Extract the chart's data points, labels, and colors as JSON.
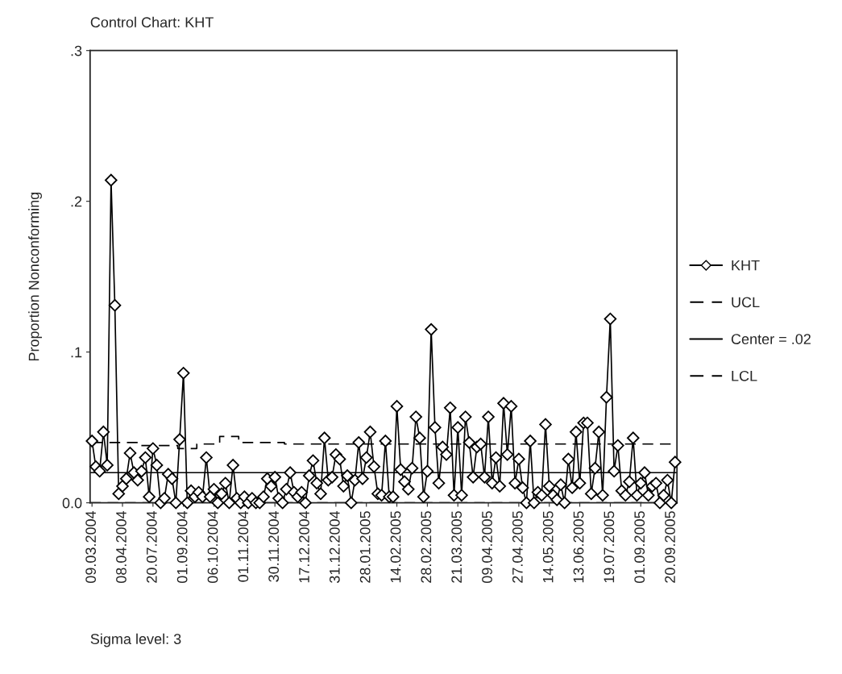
{
  "chart_data": {
    "type": "line",
    "title": "Control Chart: KHT",
    "ylabel": "Proportion Nonconforming",
    "annotations": [
      "Sigma level: 3"
    ],
    "categories": [
      "09.03.2004",
      null,
      null,
      null,
      null,
      null,
      null,
      null,
      "08.04.2004",
      null,
      null,
      null,
      null,
      null,
      null,
      null,
      "20.07.2004",
      null,
      null,
      null,
      null,
      null,
      null,
      null,
      "01.09.2004",
      null,
      null,
      null,
      null,
      null,
      null,
      null,
      "06.10.2004",
      null,
      null,
      null,
      null,
      null,
      null,
      null,
      "01.11.2004",
      null,
      null,
      null,
      null,
      null,
      null,
      null,
      "30.11.2004",
      null,
      null,
      null,
      null,
      null,
      null,
      null,
      "17.12.2004",
      null,
      null,
      null,
      null,
      null,
      null,
      null,
      "31.12.2004",
      null,
      null,
      null,
      null,
      null,
      null,
      null,
      "28.01.2005",
      null,
      null,
      null,
      null,
      null,
      null,
      null,
      "14.02.2005",
      null,
      null,
      null,
      null,
      null,
      null,
      null,
      "28.02.2005",
      null,
      null,
      null,
      null,
      null,
      null,
      null,
      "21.03.2005",
      null,
      null,
      null,
      null,
      null,
      null,
      null,
      "09.04.2005",
      null,
      null,
      null,
      null,
      null,
      null,
      null,
      "27.04.2005",
      null,
      null,
      null,
      null,
      null,
      null,
      null,
      "14.05.2005",
      null,
      null,
      null,
      null,
      null,
      null,
      null,
      "13.06.2005",
      null,
      null,
      null,
      null,
      null,
      null,
      null,
      "19.07.2005",
      null,
      null,
      null,
      null,
      null,
      null,
      null,
      "01.09.2005",
      null,
      null,
      null,
      null,
      null,
      null,
      null,
      "20.09.2005",
      null
    ],
    "series": [
      {
        "name": "KHT",
        "color": "#000000",
        "marker": "diamond",
        "line_style": "solid",
        "values": [
          0.041,
          0.024,
          0.021,
          0.047,
          0.025,
          0.214,
          0.131,
          0.006,
          0.011,
          0.016,
          0.033,
          0.02,
          0.015,
          0.021,
          0.03,
          0.004,
          0.036,
          0.025,
          0,
          0.003,
          0.019,
          0.016,
          0,
          0.042,
          0.086,
          0,
          0.008,
          0.004,
          0.007,
          0.004,
          0.03,
          0.004,
          0.009,
          0,
          0.006,
          0.013,
          0,
          0.025,
          0.003,
          0,
          0.004,
          0,
          0.003,
          0,
          0,
          0.004,
          0.016,
          0.011,
          0.017,
          0.003,
          0,
          0.009,
          0.02,
          0.007,
          0.004,
          0.007,
          0,
          0.018,
          0.028,
          0.013,
          0.006,
          0.043,
          0.015,
          0.017,
          0.032,
          0.029,
          0.011,
          0.018,
          0,
          0.015,
          0.04,
          0.016,
          0.03,
          0.047,
          0.024,
          0.006,
          0.005,
          0.041,
          0.004,
          0.004,
          0.064,
          0.022,
          0.014,
          0.009,
          0.023,
          0.057,
          0.043,
          0.004,
          0.021,
          0.115,
          0.05,
          0.013,
          0.037,
          0.032,
          0.063,
          0.005,
          0.05,
          0.005,
          0.057,
          0.04,
          0.017,
          0.037,
          0.039,
          0.017,
          0.057,
          0.013,
          0.03,
          0.011,
          0.066,
          0.032,
          0.064,
          0.013,
          0.029,
          0.01,
          0,
          0.041,
          0,
          0.007,
          0.005,
          0.052,
          0.011,
          0.005,
          0.002,
          0.012,
          0,
          0.029,
          0.01,
          0.047,
          0.013,
          0.053,
          0.053,
          0.006,
          0.023,
          0.047,
          0.005,
          0.07,
          0.122,
          0.021,
          0.038,
          0.008,
          0.005,
          0.014,
          0.043,
          0.005,
          0.013,
          0.02,
          0.005,
          0.011,
          0.013,
          0,
          0.005,
          0.015,
          0,
          0.027
        ]
      },
      {
        "name": "UCL",
        "type": "step",
        "color": "#000000",
        "marker": "none",
        "line_style": "dashed",
        "values": [
          0.04,
          0.04,
          0.04,
          0.04,
          0.04,
          0.04,
          0.04,
          0.04,
          0.04,
          0.04,
          0.04,
          0.04,
          0.04,
          0.038,
          0.038,
          0.038,
          0.038,
          0.038,
          0.038,
          0.038,
          0.038,
          0.038,
          0.038,
          0.036,
          0.036,
          0.036,
          0.036,
          0.036,
          0.039,
          0.039,
          0.039,
          0.039,
          0.039,
          0.039,
          0.044,
          0.044,
          0.044,
          0.044,
          0.044,
          0.04,
          0.04,
          0.04,
          0.04,
          0.04,
          0.04,
          0.04,
          0.04,
          0.04,
          0.04,
          0.04,
          0.04,
          0.039,
          0.039,
          0.039,
          0.039,
          0.039,
          0.039,
          0.039,
          0.039,
          0.039,
          0.039,
          0.039,
          0.039,
          0.039,
          0.039,
          0.039,
          0.039,
          0.039,
          0.039,
          0.039,
          0.039,
          0.039,
          0.039,
          0.039,
          0.039,
          0.039,
          0.039,
          0.039,
          0.039,
          0.039,
          0.039,
          0.039,
          0.039,
          0.039,
          0.039,
          0.039,
          0.039,
          0.039,
          0.039,
          0.039,
          0.039,
          0.039,
          0.039,
          0.039,
          0.039,
          0.039,
          0.039,
          0.039,
          0.039,
          0.039,
          0.039,
          0.039,
          0.039,
          0.039,
          0.039,
          0.039,
          0.039,
          0.039,
          0.039,
          0.039,
          0.039,
          0.039,
          0.039,
          0.039,
          0.039,
          0.039,
          0.039,
          0.039,
          0.039,
          0.039,
          0.039,
          0.039,
          0.039,
          0.039,
          0.039,
          0.039,
          0.039,
          0.039,
          0.039,
          0.039,
          0.039,
          0.039,
          0.039,
          0.039,
          0.039,
          0.039,
          0.039,
          0.039,
          0.039,
          0.039,
          0.039,
          0.039,
          0.039,
          0.039,
          0.039,
          0.039,
          0.039,
          0.039,
          0.039,
          0.039,
          0.039,
          0.039,
          0.039,
          0.039
        ]
      }
    ],
    "ref_lines": [
      {
        "axis": "y",
        "value": 0.02,
        "label": "Center = .02",
        "color": "#000000",
        "line_style": "solid"
      },
      {
        "axis": "y",
        "value": 0,
        "label": "LCL",
        "color": "#000000",
        "line_style": "dashed"
      }
    ],
    "ylim": [
      0,
      0.3
    ],
    "yticks": [
      {
        "value": 0,
        "label": "0.0"
      },
      {
        "value": 0.1,
        "label": ".1"
      },
      {
        "value": 0.2,
        "label": ".2"
      },
      {
        "value": 0.3,
        "label": ".3"
      }
    ],
    "legend": "right",
    "grid": false
  }
}
